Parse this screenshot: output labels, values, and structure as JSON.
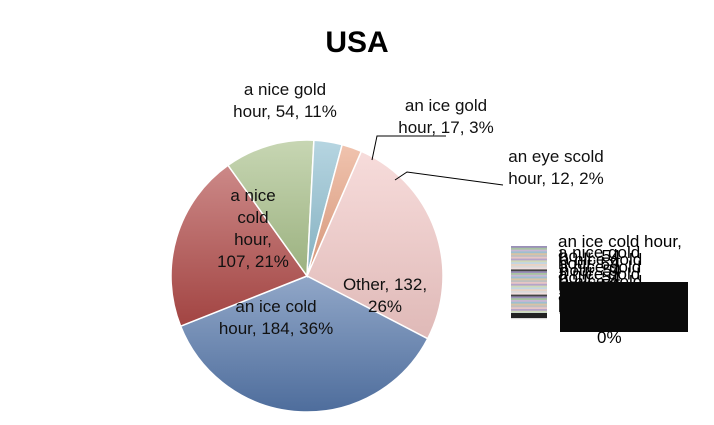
{
  "chart_data": {
    "type": "pie",
    "title": "USA",
    "slices": [
      {
        "label": "Other",
        "value": 132,
        "percent": "26%",
        "text": "Other, 132, 26%",
        "color": "#f2c9c7"
      },
      {
        "label": "an ice cold hour",
        "value": 184,
        "percent": "36%",
        "text": "an ice cold hour, 184, 36%",
        "color": "#5577aa"
      },
      {
        "label": "a nice cold hour",
        "value": 107,
        "percent": "21%",
        "text": "a nice cold hour, 107, 21%",
        "color": "#b04a48"
      },
      {
        "label": "a nice gold hour",
        "value": 54,
        "percent": "11%",
        "text": "a nice gold hour, 54, 11%",
        "color": "#a9c08a"
      },
      {
        "label": "an ice gold hour",
        "value": 17,
        "percent": "3%",
        "text": "an ice gold hour, 17, 3%",
        "color": "#8fbfd1"
      },
      {
        "label": "an eye scold hour",
        "value": 12,
        "percent": "2%",
        "text": "an eye scold hour, 12, 2%",
        "color": "#e8a383"
      }
    ],
    "legend": {
      "placement": "right",
      "overlapping": true
    },
    "legend_text_lines": [
      "an ice cold hour,",
      "a nice gold",
      "hour, 54",
      "0%"
    ]
  }
}
